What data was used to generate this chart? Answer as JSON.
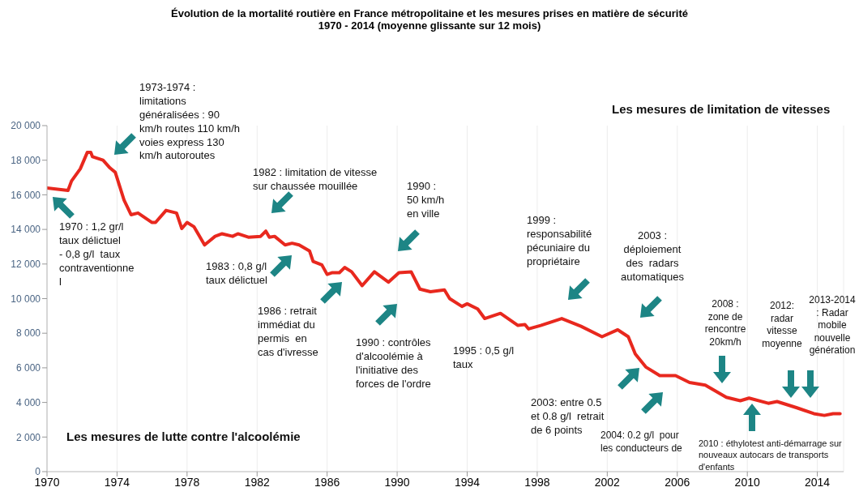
{
  "chart_data": {
    "type": "line",
    "title": "Évolution de la mortalité routière en France métropolitaine et les mesures prises en matière de sécurité",
    "subtitle": "1970 - 2014 (moyenne glissante sur 12 mois)",
    "x": [
      1970.0,
      1971.2,
      1971.4,
      1971.9,
      1972.3,
      1972.5,
      1972.6,
      1973.2,
      1973.6,
      1973.9,
      1974.4,
      1974.8,
      1975.2,
      1976.0,
      1976.2,
      1976.8,
      1977.4,
      1977.7,
      1978.0,
      1978.4,
      1979.0,
      1979.6,
      1980.0,
      1980.6,
      1980.9,
      1981.5,
      1982.2,
      1982.5,
      1982.7,
      1983.0,
      1983.6,
      1984.0,
      1984.4,
      1985.0,
      1985.2,
      1985.7,
      1986.0,
      1986.3,
      1986.7,
      1987.0,
      1987.4,
      1988.0,
      1988.7,
      1989.5,
      1990.1,
      1990.8,
      1991.3,
      1991.9,
      1992.7,
      1993.0,
      1993.7,
      1994.0,
      1994.6,
      1995.0,
      1995.9,
      1996.9,
      1997.3,
      1997.5,
      1998.2,
      1999.4,
      2000.5,
      2001.7,
      2002.6,
      2003.2,
      2003.6,
      2004.2,
      2005.0,
      2005.9,
      2006.7,
      2007.6,
      2008.8,
      2009.6,
      2010.1,
      2011.2,
      2011.7,
      2012.8,
      2013.8,
      2014.4,
      2014.9,
      2015.3
    ],
    "series": [
      {
        "color": "#e8281e",
        "values": [
          16400,
          16250,
          16800,
          17500,
          18450,
          18450,
          18200,
          18000,
          17550,
          17300,
          15700,
          14850,
          14950,
          14400,
          14400,
          15100,
          14950,
          14050,
          14400,
          14150,
          13100,
          13600,
          13750,
          13600,
          13750,
          13550,
          13600,
          13900,
          13550,
          13600,
          13100,
          13200,
          13100,
          12750,
          12150,
          11950,
          11400,
          11500,
          11500,
          11800,
          11550,
          10750,
          11550,
          10950,
          11500,
          11550,
          10550,
          10400,
          10500,
          10000,
          9550,
          9700,
          9400,
          8850,
          9150,
          8450,
          8500,
          8250,
          8450,
          8850,
          8400,
          7800,
          8200,
          7800,
          6800,
          6050,
          5550,
          5550,
          5150,
          5000,
          4300,
          4100,
          4250,
          3950,
          4050,
          3700,
          3350,
          3250,
          3350,
          3350
        ]
      }
    ],
    "xlim": [
      1970,
      2015.5
    ],
    "xticks": [
      1970,
      1974,
      1978,
      1982,
      1986,
      1990,
      1994,
      1998,
      2002,
      2006,
      2010,
      2014
    ],
    "ylim": [
      0,
      20000
    ],
    "yticks": [
      0,
      {
        "value": 2000,
        "label": "2 000"
      },
      {
        "value": 4000,
        "label": "4 000"
      },
      {
        "value": 6000,
        "label": "6 000"
      },
      {
        "value": 8000,
        "label": "8 000"
      },
      {
        "value": 10000,
        "label": "10 000"
      },
      {
        "value": 12000,
        "label": "12 000"
      },
      {
        "value": 14000,
        "label": "14 000"
      },
      {
        "value": 16000,
        "label": "16 000"
      },
      {
        "value": 18000,
        "label": "18 000"
      },
      {
        "value": 20000,
        "label": "20 000"
      }
    ],
    "grid": "x",
    "marker": "none",
    "line_style": "solid",
    "annotations": [
      "1973-1974 :\nlimitations\ngénéralisées : 90\nkm/h routes 110 km/h\nvoies express 130\nkm/h autoroutes",
      "1970 : 1,2 gr/l\ntaux délictuel\n- 0,8 g/l  taux\ncontraventionne\nl",
      "1982 : limitation de vitesse\nsur chaussée mouillée",
      "1990 :\n50 km/h\nen ville",
      "1983 : 0,8 g/l\ntaux délictuel",
      "1986 : retrait\nimmédiat du\npermis  en\ncas d'ivresse",
      "1990 : contrôles\nd'alcoolémie à\nl'initiative des\nforces de l'ordre",
      "1995 : 0,5 g/l\ntaux",
      "1999 :\nresponsabilité\npécuniaire du\npropriétaire",
      "2003 :\ndéploiement\ndes  radars\nautomatiques",
      "2003: entre 0.5\net 0.8 g/l  retrait\nde 6 points",
      "2004: 0.2 g/l  pour\nles conducteurs de",
      "2008 :\nzone de\nrencontre\n20km/h",
      "2012:\nradar\nvitesse\nmoyenne",
      "2013-2014\n: Radar\nmobile\nnouvelle\ngénération",
      "2010 : éthylotest anti-démarrage sur\nnouveaux autocars de transports\nd'enfants",
      "Les mesures de limitation de vitesses",
      "Les mesures de lutte contre l'alcoolémie"
    ]
  }
}
